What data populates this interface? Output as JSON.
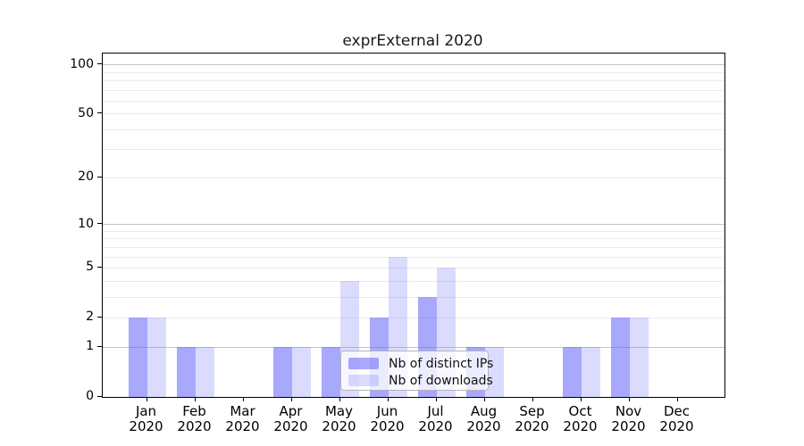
{
  "chart_data": {
    "type": "bar",
    "title": "exprExternal 2020",
    "year": "2020",
    "categories": [
      "Jan",
      "Feb",
      "Mar",
      "Apr",
      "May",
      "Jun",
      "Jul",
      "Aug",
      "Sep",
      "Oct",
      "Nov",
      "Dec"
    ],
    "series": [
      {
        "name": "Nb of distinct IPs",
        "values": [
          2,
          1,
          0,
          1,
          1,
          2,
          3,
          1,
          0,
          1,
          2,
          0
        ],
        "color": "rgba(100,100,250,0.56)"
      },
      {
        "name": "Nb of downloads",
        "values": [
          2,
          1,
          0,
          1,
          4,
          6,
          5,
          1,
          0,
          1,
          2,
          0
        ],
        "color": "rgba(100,100,250,0.23)"
      }
    ],
    "y_axis": {
      "scale": "log1p",
      "tick_labels": [
        0,
        1,
        2,
        5,
        10,
        20,
        50,
        100
      ],
      "ylim": [
        0,
        117
      ],
      "major_gridlines": [
        1,
        10,
        100
      ],
      "minor_gridlines": [
        2,
        3,
        4,
        5,
        6,
        7,
        8,
        9,
        20,
        30,
        40,
        50,
        60,
        70,
        80,
        90
      ]
    },
    "legend": {
      "position": "bottom-center"
    },
    "grid": true
  }
}
